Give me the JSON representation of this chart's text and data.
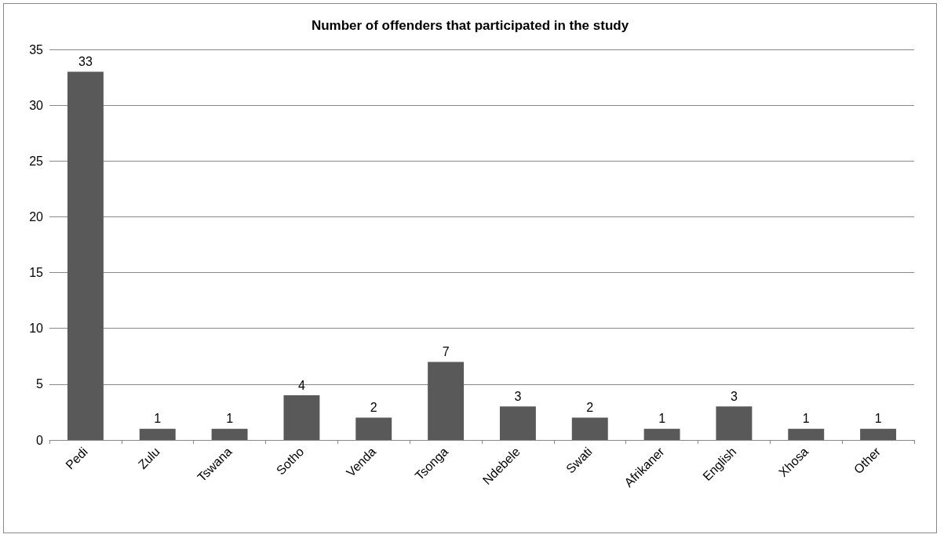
{
  "chart_data": {
    "type": "bar",
    "title": "Number of offenders that participated in the study",
    "categories": [
      "Pedi",
      "Zulu",
      "Tswana",
      "Sotho",
      "Venda",
      "Tsonga",
      "Ndebele",
      "Swati",
      "Afrikaner",
      "English",
      "Xhosa",
      "Other"
    ],
    "values": [
      33,
      1,
      1,
      4,
      2,
      7,
      3,
      2,
      1,
      3,
      1,
      1
    ],
    "color": "#595959",
    "ylim": [
      0,
      35
    ],
    "yticks": [
      0,
      5,
      10,
      15,
      20,
      25,
      30,
      35
    ],
    "grid": "y",
    "data_labels": true
  }
}
